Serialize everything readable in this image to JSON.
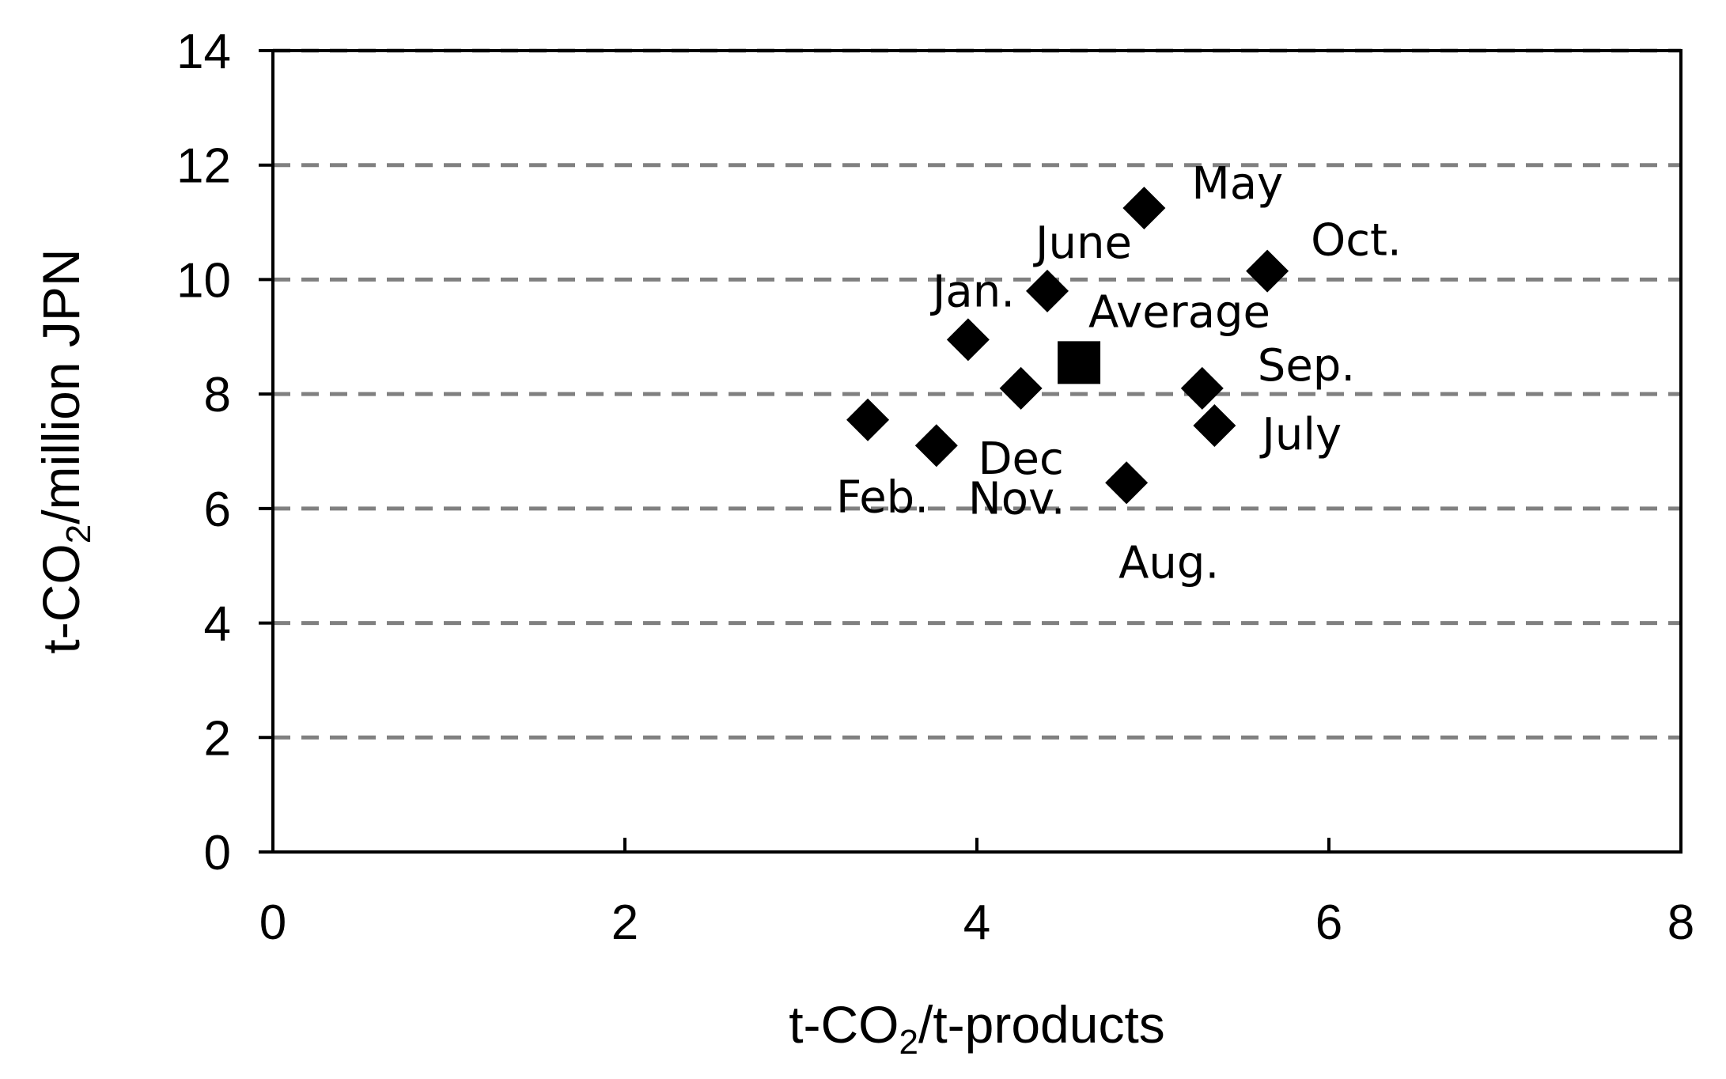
{
  "chart_data": {
    "type": "scatter",
    "title": "",
    "xlabel": {
      "prefix": "t-CO",
      "sub": "2",
      "suffix": "/t-products"
    },
    "ylabel": {
      "prefix": "t-CO",
      "sub": "2",
      "suffix": "/million JPN"
    },
    "xlim": [
      0,
      8
    ],
    "ylim": [
      0,
      14
    ],
    "xticks": [
      "0",
      "2",
      "4",
      "6",
      "8"
    ],
    "yticks": [
      "0",
      "2",
      "4",
      "6",
      "8",
      "10",
      "12",
      "14"
    ],
    "grid": "horizontal dashed",
    "points": [
      {
        "label": "May",
        "x": 4.95,
        "y": 11.25,
        "marker": "diamond"
      },
      {
        "label": "Oct.",
        "x": 5.65,
        "y": 10.15,
        "marker": "diamond"
      },
      {
        "label": "June",
        "x": 4.4,
        "y": 9.8,
        "marker": "diamond"
      },
      {
        "label": "Jan.",
        "x": 3.95,
        "y": 8.95,
        "marker": "diamond"
      },
      {
        "label": "Dec",
        "x": 4.25,
        "y": 8.1,
        "marker": "diamond"
      },
      {
        "label": "Sep.",
        "x": 5.28,
        "y": 8.1,
        "marker": "diamond"
      },
      {
        "label": "July",
        "x": 5.35,
        "y": 7.45,
        "marker": "diamond"
      },
      {
        "label": "Feb.",
        "x": 3.38,
        "y": 7.55,
        "marker": "diamond"
      },
      {
        "label": "Nov.",
        "x": 3.77,
        "y": 7.1,
        "marker": "diamond"
      },
      {
        "label": "Aug.",
        "x": 4.85,
        "y": 6.45,
        "marker": "diamond"
      },
      {
        "label": "Average",
        "x": 4.58,
        "y": 8.55,
        "marker": "square"
      }
    ]
  }
}
